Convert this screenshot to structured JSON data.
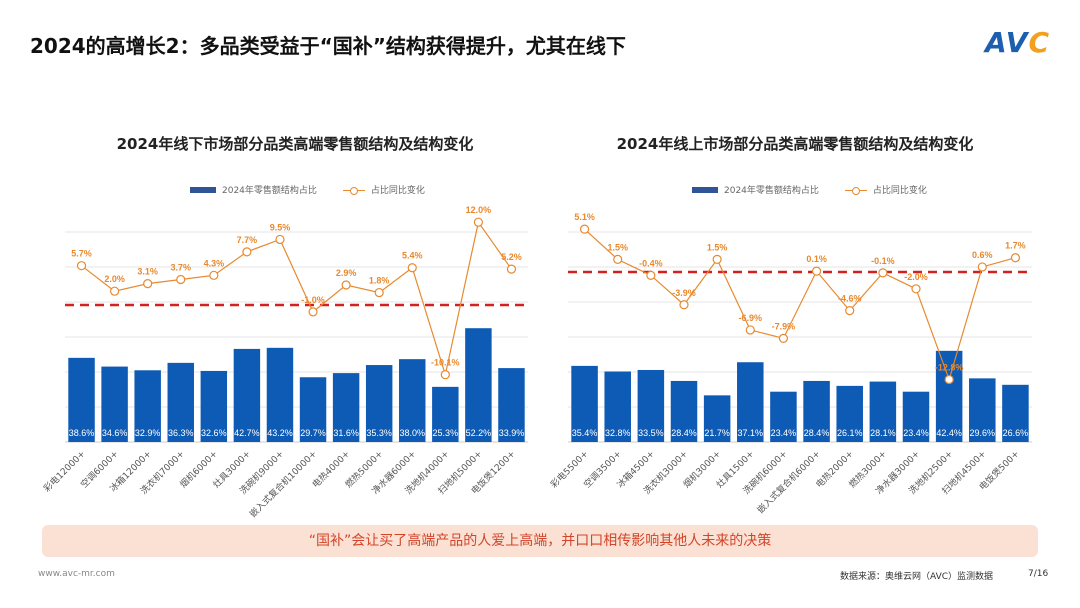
{
  "header": {
    "title": "2024的高增长2：多品类受益于“国补”结构获得提升，尤其在线下",
    "logo": "AVC"
  },
  "chart_data": [
    {
      "type": "bar+line",
      "title": "2024年线下市场部分品类高端零售额结构及结构变化",
      "legend": [
        "2024年零售额结构占比",
        "占比同比变化"
      ],
      "legend_placement": "top",
      "categories": [
        "彩电12000+",
        "空调6000+",
        "冰箱12000+",
        "洗衣机7000+",
        "烟机6000+",
        "灶具3000+",
        "洗碗机9000+",
        "嵌入式复合机10000+",
        "电热4000+",
        "燃热5000+",
        "净水器6000+",
        "洗地机4000+",
        "扫地机5000+",
        "电饭煲1200+"
      ],
      "bar_values": [
        38.6,
        34.6,
        32.9,
        36.3,
        32.6,
        42.7,
        43.2,
        29.7,
        31.6,
        35.3,
        38.0,
        25.3,
        52.2,
        33.9
      ],
      "bar_labels": [
        "38.6%",
        "34.6%",
        "32.9%",
        "36.3%",
        "32.6%",
        "42.7%",
        "43.2%",
        "29.7%",
        "31.6%",
        "35.3%",
        "38.0%",
        "25.3%",
        "52.2%",
        "33.9%"
      ],
      "line_values": [
        5.7,
        2.0,
        3.1,
        3.7,
        4.3,
        7.7,
        9.5,
        -1.0,
        2.9,
        1.8,
        5.4,
        -10.1,
        12.0,
        5.2
      ],
      "line_labels": [
        "5.7%",
        "2.0%",
        "3.1%",
        "3.7%",
        "4.3%",
        "7.7%",
        "9.5%",
        "-1.0%",
        "2.9%",
        "1.8%",
        "5.4%",
        "-10.1%",
        "12.0%",
        "5.2%"
      ],
      "reference_line": 0,
      "grid": true,
      "colors": {
        "bar": "#0e5bb5",
        "line": "#e8892e",
        "zero": "#d62020"
      }
    },
    {
      "type": "bar+line",
      "title": "2024年线上市场部分品类高端零售额结构及结构变化",
      "legend": [
        "2024年零售额结构占比",
        "占比同比变化"
      ],
      "legend_placement": "top",
      "categories": [
        "彩电5500+",
        "空调3500+",
        "冰箱4500+",
        "洗衣机3000+",
        "烟机3000+",
        "灶具1500+",
        "洗碗机6000+",
        "嵌入式复合机6000+",
        "电热2000+",
        "燃热3000+",
        "净水器3000+",
        "洗地机2500+",
        "扫地机4500+",
        "电饭煲500+"
      ],
      "bar_values": [
        35.4,
        32.8,
        33.5,
        28.4,
        21.7,
        37.1,
        23.4,
        28.4,
        26.1,
        28.1,
        23.4,
        42.4,
        29.6,
        26.6
      ],
      "bar_labels": [
        "35.4%",
        "32.8%",
        "33.5%",
        "28.4%",
        "21.7%",
        "37.1%",
        "23.4%",
        "28.4%",
        "26.1%",
        "28.1%",
        "23.4%",
        "42.4%",
        "29.6%",
        "26.6%"
      ],
      "line_values": [
        5.1,
        1.5,
        -0.4,
        -3.9,
        1.5,
        -6.9,
        -7.9,
        0.1,
        -4.6,
        -0.1,
        -2.0,
        -12.8,
        0.6,
        1.7
      ],
      "line_labels": [
        "5.1%",
        "1.5%",
        "-0.4%",
        "-3.9%",
        "1.5%",
        "-6.9%",
        "-7.9%",
        "0.1%",
        "-4.6%",
        "-0.1%",
        "-2.0%",
        "-12.8%",
        "0.6%",
        "1.7%"
      ],
      "reference_line": 0,
      "grid": true,
      "colors": {
        "bar": "#0e5bb5",
        "line": "#e8892e",
        "zero": "#d62020"
      }
    }
  ],
  "banner": "“国补”会让买了高端产品的人爱上高端，并口口相传影响其他人未来的决策",
  "footer": {
    "website": "www.avc-mr.com",
    "source": "数据来源：奥维云网（AVC）监测数据",
    "page": "7/16"
  }
}
